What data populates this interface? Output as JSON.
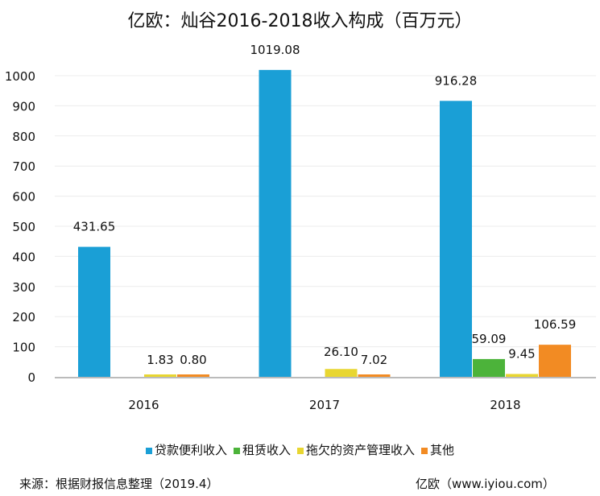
{
  "chart_data": {
    "type": "bar",
    "title": "亿欧：灿谷2016-2018收入构成（百万元）",
    "categories": [
      "2016",
      "2017",
      "2018"
    ],
    "ylim": [
      0,
      1000
    ],
    "yticks": [
      0,
      100,
      200,
      300,
      400,
      500,
      600,
      700,
      800,
      900,
      1000
    ],
    "grid": true,
    "legend_position": "bottom",
    "series": [
      {
        "name": "贷款便利收入",
        "color": "#1a9fd6",
        "values": [
          431.65,
          1019.08,
          916.28
        ],
        "labels": [
          "431.65",
          "1019.08",
          "916.28"
        ]
      },
      {
        "name": "租赁收入",
        "color": "#4cb33a",
        "values": [
          null,
          null,
          59.09
        ],
        "labels": [
          "",
          "",
          "59.09"
        ]
      },
      {
        "name": "拖欠的资产管理收入",
        "color": "#e8d631",
        "values": [
          1.83,
          26.1,
          9.45
        ],
        "labels": [
          "1.83",
          "26.10",
          "9.45"
        ]
      },
      {
        "name": "其他",
        "color": "#f28b23",
        "values": [
          0.8,
          7.02,
          106.59
        ],
        "labels": [
          "0.80",
          "7.02",
          "106.59"
        ]
      }
    ]
  },
  "footer": {
    "source": "来源：根据财报信息整理（2019.4）",
    "brand": "亿欧（www.iyiou.com）"
  }
}
